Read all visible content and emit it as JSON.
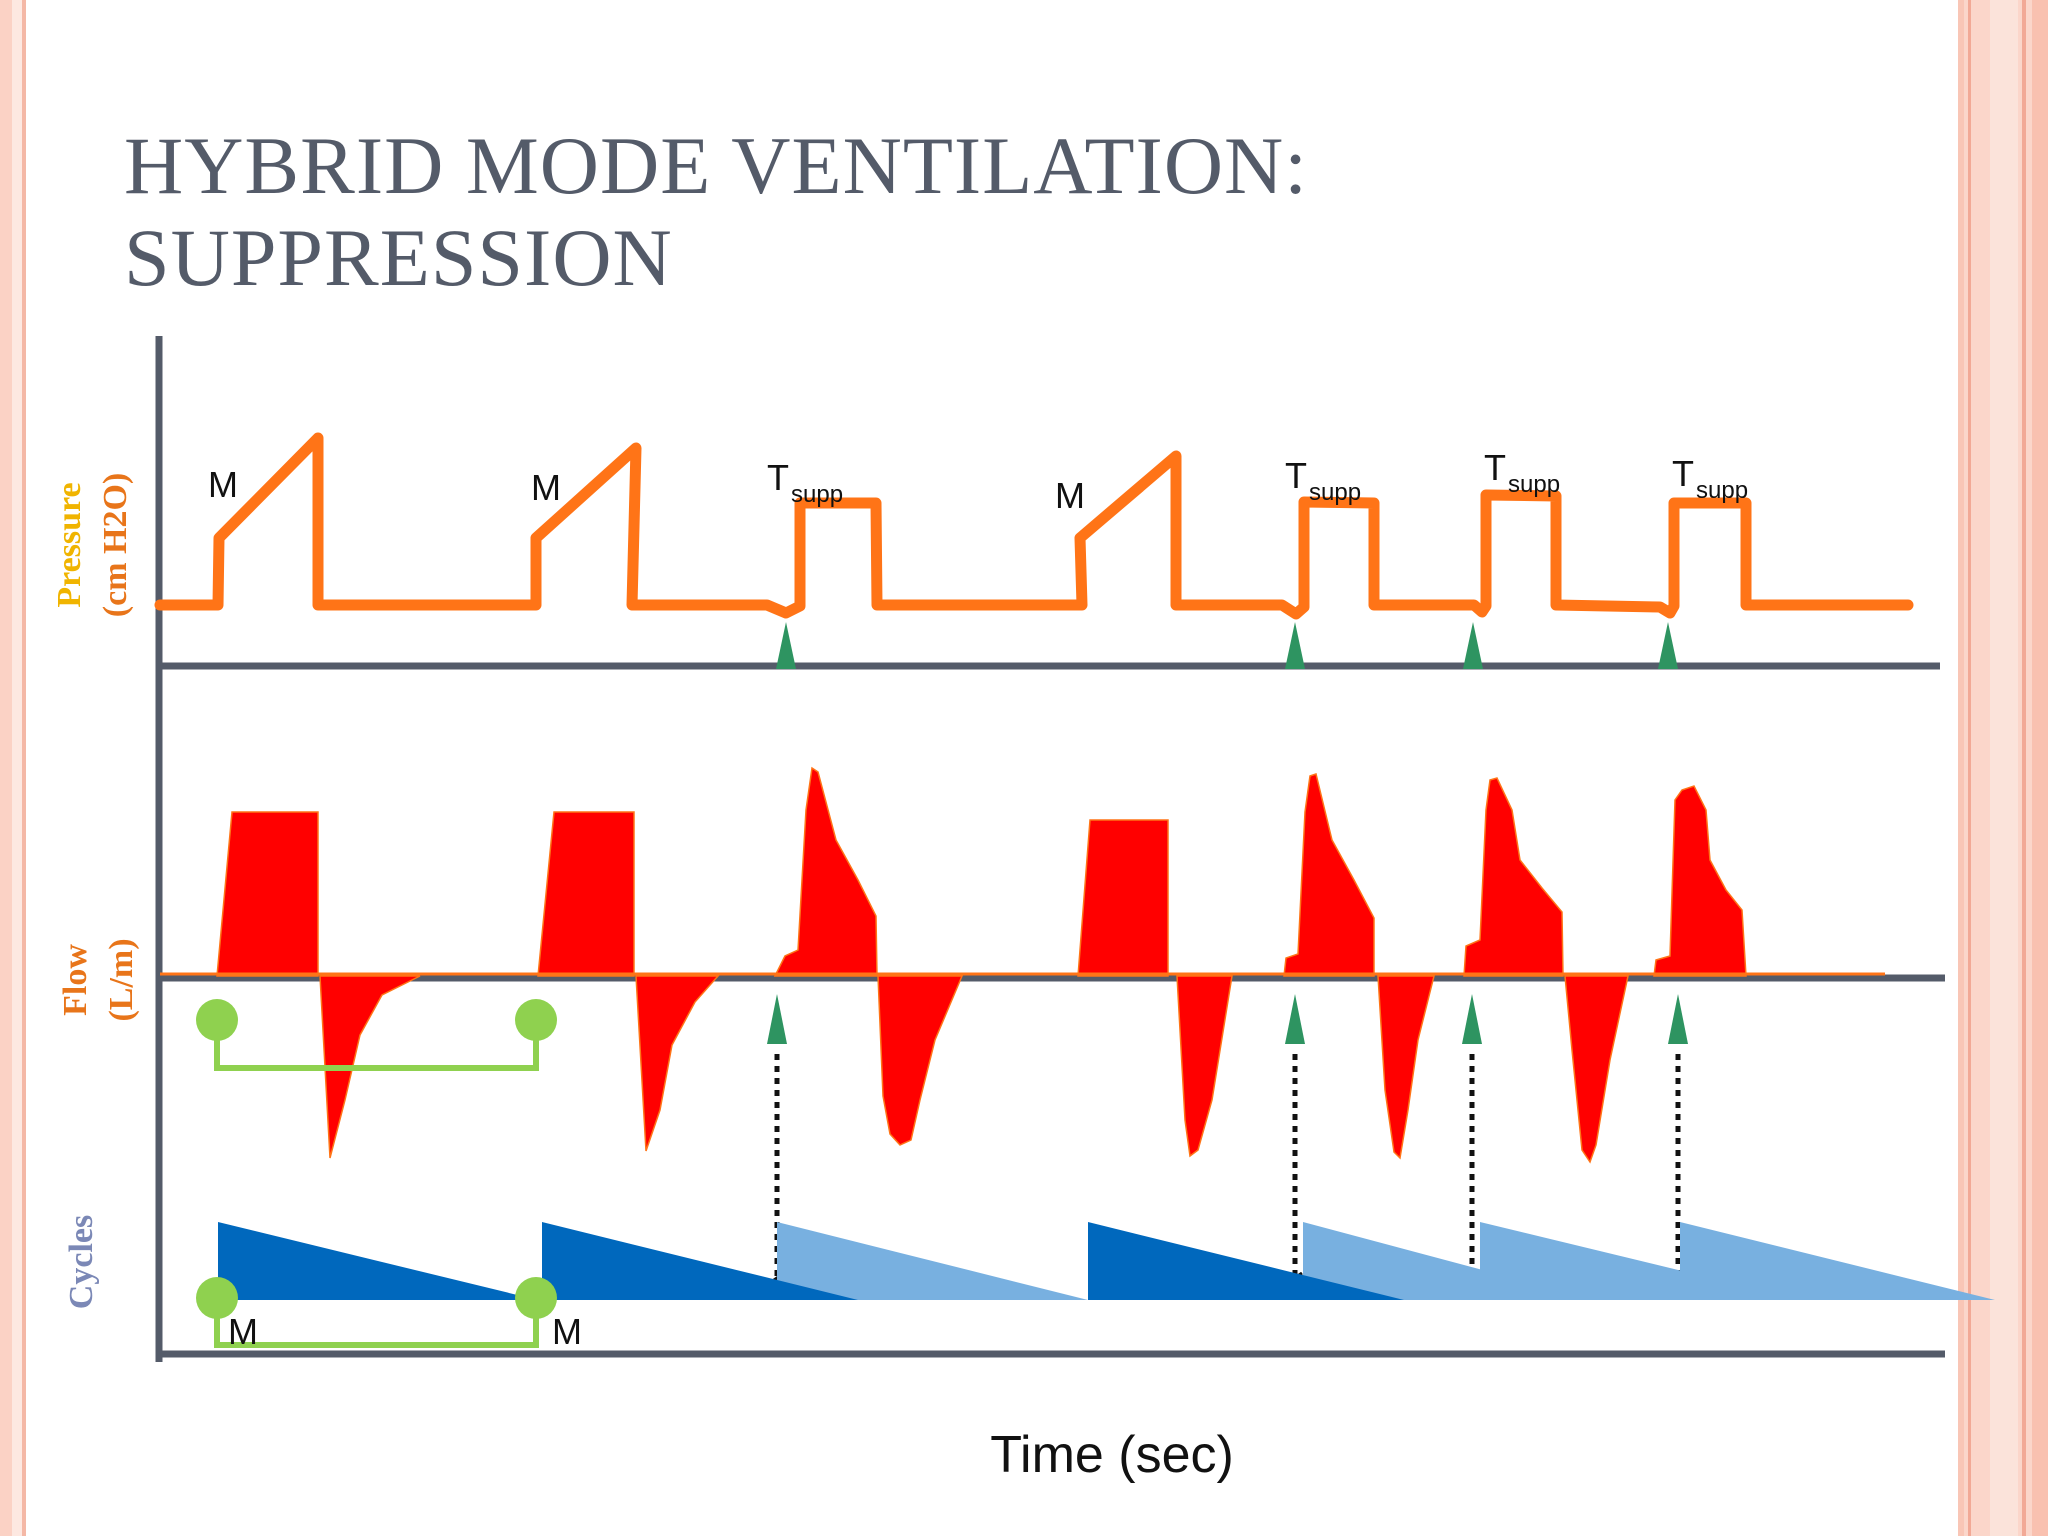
{
  "title_line1": "HYBRID MODE VENTILATION:",
  "title_line2": "SUPPRESSION",
  "axes": {
    "pressure_label": "Pressure",
    "pressure_unit": "(cm H2O)",
    "flow_label": "Flow",
    "flow_unit": "(L/m)",
    "cycles_label": "Cycles",
    "time_label": "Time (sec)"
  },
  "breath_labels": {
    "mandatory": "M",
    "triggered": "T",
    "triggered_subscript": "supp"
  },
  "colors": {
    "title": "#545b69",
    "pressure_label": "#f0b400",
    "flow_label": "#e8751a",
    "cycles_label": "#7b88b6",
    "pressure_trace": "#ff7417",
    "flow_fill": "#ff0000",
    "trigger_marker": "#2e9461",
    "mandatory_cycle": "#0068bd",
    "spontaneous_cycle": "#78b0e0",
    "interval_marker": "#8fd14f",
    "axis": "#545b69"
  }
}
